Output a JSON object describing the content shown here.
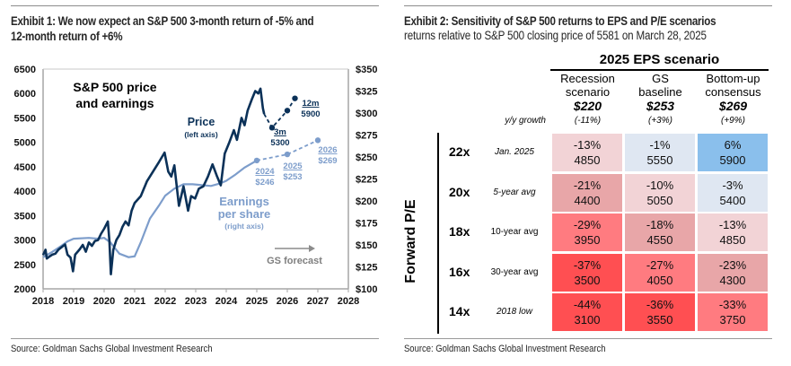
{
  "exhibit1": {
    "title": "Exhibit 1: We now expect an S&P 500 3-month return of -5% and 12-month return of +6%",
    "title_line1": "Exhibit 1: We now expect an S&P 500 3-month return of -5% and",
    "title_line2": "12-month return of +6%",
    "source": "Source: Goldman Sachs Global Investment Research"
  },
  "exhibit2": {
    "title": "Exhibit 2: Sensitivity of S&P 500 returns to EPS and P/E scenarios",
    "subtitle": "returns relative to S&P 500 closing price of 5581 on March 28, 2025",
    "source": "Source: Goldman Sachs Global Investment Research",
    "eps_header": "2025 EPS scenario",
    "yy_label": "y/y growth",
    "row_axis_label": "Forward P/E",
    "columns": [
      {
        "line1": "Recession",
        "line2": "scenario",
        "eps": "$220",
        "growth": "(-11%)"
      },
      {
        "line1": "GS",
        "line2": "baseline",
        "eps": "$253",
        "growth": "(+3%)"
      },
      {
        "line1": "Bottom-up",
        "line2": "consensus",
        "eps": "$269",
        "growth": "(+9%)"
      }
    ],
    "rows": [
      {
        "pe": "22x",
        "desc": "Jan. 2025",
        "italic": true,
        "cells": [
          {
            "ret": "-13%",
            "price": "4850",
            "color": "#f2d3d6"
          },
          {
            "ret": "-1%",
            "price": "5550",
            "color": "#dfe7f2"
          },
          {
            "ret": "6%",
            "price": "5900",
            "color": "#8abfec"
          }
        ]
      },
      {
        "pe": "20x",
        "desc": "5-year avg",
        "italic": true,
        "cells": [
          {
            "ret": "-21%",
            "price": "4400",
            "color": "#e8a6a8"
          },
          {
            "ret": "-10%",
            "price": "5050",
            "color": "#f2d3d6"
          },
          {
            "ret": "-3%",
            "price": "5400",
            "color": "#dfe7f2"
          }
        ]
      },
      {
        "pe": "18x",
        "desc": "10-year avg",
        "italic": false,
        "cells": [
          {
            "ret": "-29%",
            "price": "3950",
            "color": "#ff7b80"
          },
          {
            "ret": "-18%",
            "price": "4550",
            "color": "#e8a6a8"
          },
          {
            "ret": "-13%",
            "price": "4850",
            "color": "#f2d3d6"
          }
        ]
      },
      {
        "pe": "16x",
        "desc": "30-year avg",
        "italic": false,
        "cells": [
          {
            "ret": "-37%",
            "price": "3500",
            "color": "#ff4f52"
          },
          {
            "ret": "-27%",
            "price": "4050",
            "color": "#ff7b80"
          },
          {
            "ret": "-23%",
            "price": "4300",
            "color": "#e8a6a8"
          }
        ]
      },
      {
        "pe": "14x",
        "desc": "2018 low",
        "italic": true,
        "cells": [
          {
            "ret": "-44%",
            "price": "3100",
            "color": "#ff4f52"
          },
          {
            "ret": "-36%",
            "price": "3550",
            "color": "#ff4f52"
          },
          {
            "ret": "-33%",
            "price": "3750",
            "color": "#ff7b80"
          }
        ]
      }
    ]
  },
  "chart_data": [
    {
      "type": "line",
      "title": "S&P 500 price and earnings",
      "title_line1": "S&P 500 price",
      "title_line2": "and earnings",
      "x_ticks": [
        "2018",
        "2019",
        "2020",
        "2021",
        "2022",
        "2023",
        "2024",
        "2025",
        "2026",
        "2027",
        "2028"
      ],
      "xlim": [
        2018,
        2028
      ],
      "left_axis": {
        "ticks": [
          "6500",
          "6000",
          "5500",
          "5000",
          "4500",
          "4000",
          "3500",
          "3000",
          "2500",
          "2000"
        ],
        "ylim": [
          2000,
          6500
        ]
      },
      "right_axis": {
        "ticks": [
          "$350",
          "$325",
          "$300",
          "$275",
          "$250",
          "$225",
          "$200",
          "$175",
          "$150",
          "$125",
          "$100"
        ],
        "ylim": [
          100,
          350
        ]
      },
      "colors": {
        "price": "#0b3158",
        "eps": "#7d9dcb",
        "forecast_arrow": "#8c8c8c"
      },
      "series": [
        {
          "name": "Price",
          "axis": "left",
          "label_line1": "Price",
          "label_line2": "(left axis)",
          "points": [
            [
              2018.0,
              2690
            ],
            [
              2018.08,
              2800
            ],
            [
              2018.12,
              2620
            ],
            [
              2018.2,
              2660
            ],
            [
              2018.3,
              2700
            ],
            [
              2018.4,
              2720
            ],
            [
              2018.5,
              2800
            ],
            [
              2018.6,
              2850
            ],
            [
              2018.72,
              2910
            ],
            [
              2018.8,
              2700
            ],
            [
              2018.9,
              2640
            ],
            [
              2018.98,
              2360
            ],
            [
              2019.05,
              2700
            ],
            [
              2019.2,
              2810
            ],
            [
              2019.3,
              2900
            ],
            [
              2019.4,
              2760
            ],
            [
              2019.5,
              2950
            ],
            [
              2019.6,
              2880
            ],
            [
              2019.7,
              2980
            ],
            [
              2019.8,
              3000
            ],
            [
              2019.9,
              3130
            ],
            [
              2020.0,
              3230
            ],
            [
              2020.12,
              3380
            ],
            [
              2020.17,
              3000
            ],
            [
              2020.22,
              2300
            ],
            [
              2020.3,
              2800
            ],
            [
              2020.4,
              3000
            ],
            [
              2020.5,
              3100
            ],
            [
              2020.6,
              3270
            ],
            [
              2020.7,
              3380
            ],
            [
              2020.8,
              3300
            ],
            [
              2020.9,
              3600
            ],
            [
              2021.0,
              3760
            ],
            [
              2021.2,
              3900
            ],
            [
              2021.4,
              4200
            ],
            [
              2021.6,
              4400
            ],
            [
              2021.8,
              4600
            ],
            [
              2021.98,
              4790
            ],
            [
              2022.1,
              4400
            ],
            [
              2022.2,
              4300
            ],
            [
              2022.3,
              4530
            ],
            [
              2022.45,
              3700
            ],
            [
              2022.6,
              4100
            ],
            [
              2022.75,
              3600
            ],
            [
              2022.85,
              3900
            ],
            [
              2022.98,
              3850
            ],
            [
              2023.1,
              4050
            ],
            [
              2023.25,
              4100
            ],
            [
              2023.4,
              4300
            ],
            [
              2023.55,
              4550
            ],
            [
              2023.7,
              4300
            ],
            [
              2023.82,
              4120
            ],
            [
              2023.95,
              4770
            ],
            [
              2024.1,
              5000
            ],
            [
              2024.25,
              5250
            ],
            [
              2024.35,
              5050
            ],
            [
              2024.5,
              5500
            ],
            [
              2024.6,
              5350
            ],
            [
              2024.7,
              5650
            ],
            [
              2024.85,
              5900
            ],
            [
              2024.95,
              6050
            ],
            [
              2025.05,
              6000
            ],
            [
              2025.12,
              6100
            ],
            [
              2025.2,
              5700
            ],
            [
              2025.24,
              5580
            ]
          ]
        },
        {
          "name": "Price forecast",
          "axis": "left",
          "dashed": true,
          "points": [
            [
              2025.24,
              5580
            ],
            [
              2025.5,
              5300
            ],
            [
              2026.0,
              5650
            ],
            [
              2026.25,
              5900
            ]
          ]
        },
        {
          "name": "Earnings per share",
          "axis": "right",
          "label_line1": "Earnings",
          "label_line2": "per share",
          "label_line3": "(right axis)",
          "points": [
            [
              2018.0,
              136
            ],
            [
              2018.3,
              142
            ],
            [
              2018.6,
              149
            ],
            [
              2018.8,
              154
            ],
            [
              2019.0,
              157
            ],
            [
              2019.5,
              158
            ],
            [
              2019.8,
              157
            ],
            [
              2020.0,
              158
            ],
            [
              2020.2,
              153
            ],
            [
              2020.5,
              140
            ],
            [
              2020.8,
              136
            ],
            [
              2021.0,
              137
            ],
            [
              2021.2,
              153
            ],
            [
              2021.5,
              180
            ],
            [
              2021.8,
              195
            ],
            [
              2022.0,
              206
            ],
            [
              2022.3,
              214
            ],
            [
              2022.6,
              219
            ],
            [
              2022.9,
              219
            ],
            [
              2023.2,
              218
            ],
            [
              2023.5,
              217
            ],
            [
              2023.8,
              220
            ],
            [
              2024.0,
              223
            ],
            [
              2024.3,
              230
            ],
            [
              2024.6,
              238
            ],
            [
              2025.0,
              246
            ]
          ]
        },
        {
          "name": "EPS forecast",
          "axis": "right",
          "dashed": true,
          "points": [
            [
              2025.0,
              246
            ],
            [
              2026.0,
              253
            ],
            [
              2027.0,
              269
            ]
          ]
        }
      ],
      "annotations": [
        {
          "label": "12m",
          "value": "5900"
        },
        {
          "label": "3m",
          "value": "5300"
        },
        {
          "label": "2024",
          "value": "$246"
        },
        {
          "label": "2025",
          "value": "$253"
        },
        {
          "label": "2026",
          "value": "$269"
        },
        {
          "label": "GS forecast",
          "arrow": true
        }
      ]
    }
  ]
}
